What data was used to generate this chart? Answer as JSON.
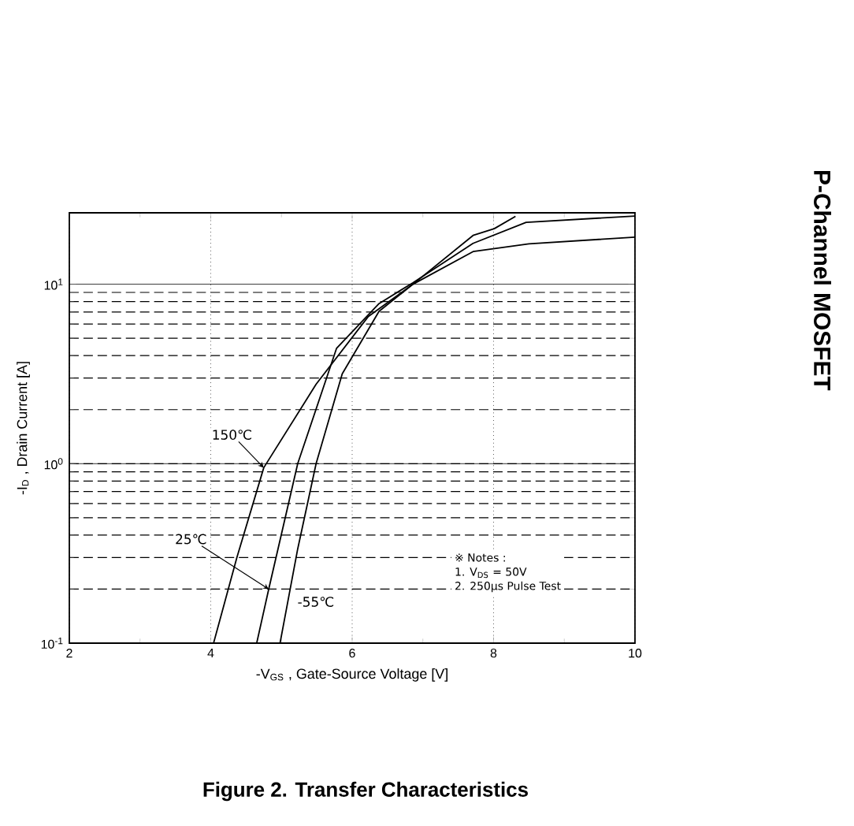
{
  "chart_data": {
    "type": "line",
    "title": "Figure 2. Transfer Characteristics",
    "xlabel": "-V$_{GS}$ , Gate-Source Voltage [V]",
    "ylabel": "-I$_{D}$ , Drain Current [A]",
    "log": "y",
    "grid": true,
    "legend": false,
    "marker": "none",
    "xlim": [
      2,
      10
    ],
    "ylim": [
      0.1,
      25
    ],
    "xticks": [
      2,
      4,
      6,
      8,
      10
    ],
    "yticks": [
      {
        "value": 0.1,
        "label": "10$^{-1}$"
      },
      {
        "value": 1,
        "label": "10$^{0}$"
      },
      {
        "value": 10,
        "label": "10$^{1}$"
      }
    ],
    "series": [
      {
        "name": "150℃",
        "color": "#000000",
        "x": [
          4.04,
          4.37,
          4.75,
          5.49,
          6.23,
          6.86,
          7.71,
          8.5,
          10
        ],
        "values": [
          0.1,
          0.3,
          0.95,
          2.77,
          6.62,
          10,
          15.2,
          16.8,
          18.3
        ]
      },
      {
        "name": "25℃",
        "color": "#000000",
        "x": [
          4.65,
          4.82,
          5.23,
          5.78,
          6.38,
          6.86,
          7.71,
          8.46,
          10
        ],
        "values": [
          0.1,
          0.2,
          1,
          4.4,
          7.8,
          10.2,
          16.9,
          22.1,
          24
        ]
      },
      {
        "name": "-55℃",
        "color": "#000000",
        "x": [
          4.98,
          5.23,
          5.49,
          5.86,
          6.38,
          6.86,
          7.71,
          8.01,
          8.31
        ],
        "values": [
          0.1,
          0.335,
          1,
          3.17,
          7.06,
          10,
          18.7,
          20.4,
          23.9
        ]
      }
    ],
    "annotations": [
      "※ Notes :",
      "1. V$_{DS}$ = 50V",
      "2. 250μs Pulse Test",
      "P-Channel MOSFET"
    ]
  }
}
